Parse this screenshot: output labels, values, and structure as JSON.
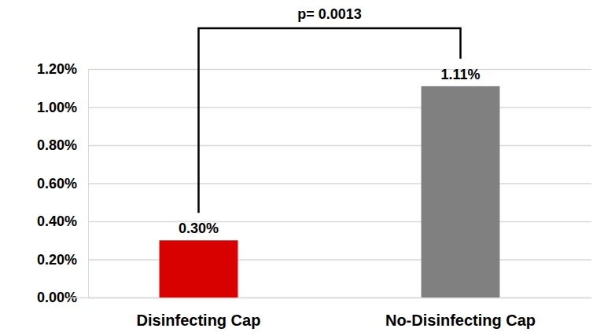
{
  "chart_data": {
    "type": "bar",
    "annotation": "p= 0.0013",
    "categories": [
      "Disinfecting Cap",
      "No-Disinfecting Cap"
    ],
    "values": [
      0.3,
      1.11
    ],
    "value_labels": [
      "0.30%",
      "1.11%"
    ],
    "colors": [
      "#d90000",
      "#808080"
    ],
    "ylim": [
      0,
      1.2
    ],
    "yticks": [
      {
        "value": 0,
        "label": "0.00%"
      },
      {
        "value": 0.2,
        "label": "0.20%"
      },
      {
        "value": 0.4,
        "label": "0.40%"
      },
      {
        "value": 0.6,
        "label": "0.60%"
      },
      {
        "value": 0.8,
        "label": "0.80%"
      },
      {
        "value": 1.0,
        "label": "1.00%"
      },
      {
        "value": 1.2,
        "label": "1.20%"
      }
    ],
    "grid": true,
    "data_labels": true
  }
}
